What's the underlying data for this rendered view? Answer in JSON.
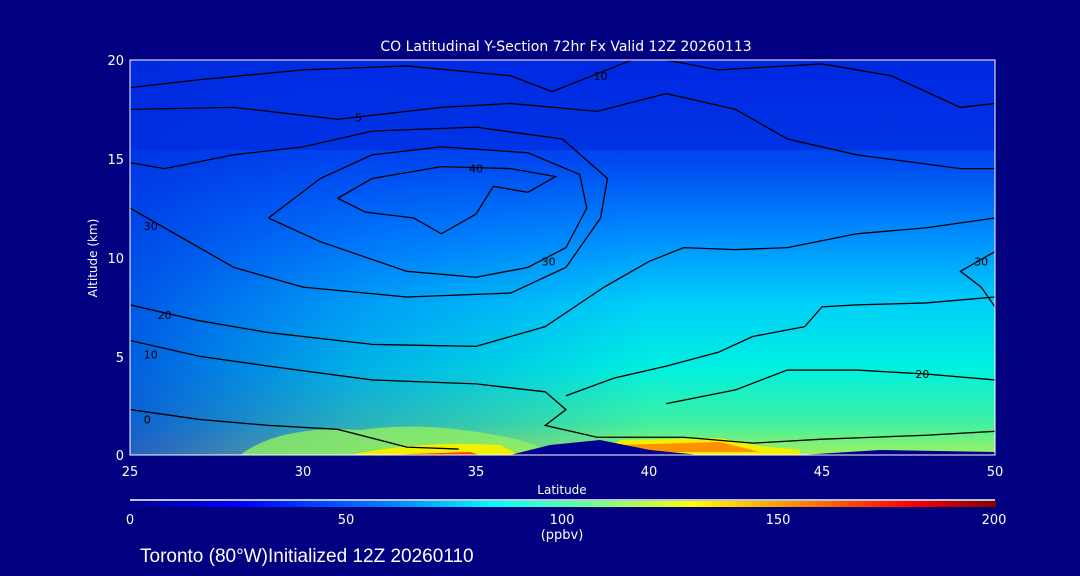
{
  "chart_data": {
    "type": "heatmap",
    "title": "CO Latitudinal Y-Section 72hr  Fx Valid 12Z 20260113",
    "xlabel": "Latitude",
    "ylabel": "Altitude (km)",
    "xlim": [
      25,
      50
    ],
    "ylim": [
      0,
      20
    ],
    "xticks": [
      "25",
      "30",
      "35",
      "40",
      "45",
      "50"
    ],
    "yticks": [
      "0",
      "5",
      "10",
      "15",
      "20"
    ],
    "colorbar": {
      "ticks": [
        "0",
        "50",
        "100",
        "150",
        "200"
      ],
      "range": [
        0,
        200
      ],
      "units": "(ppbv)",
      "colors": [
        "#000090",
        "#0000ff",
        "#0080ff",
        "#00ffff",
        "#80ff80",
        "#ffff00",
        "#ff8000",
        "#ff0000",
        "#800000"
      ]
    },
    "contours": [
      {
        "label": "40",
        "label_at": [
          35,
          14.5
        ],
        "points": [
          [
            31,
            13
          ],
          [
            32,
            14
          ],
          [
            34,
            14.6
          ],
          [
            36,
            14.5
          ],
          [
            37.3,
            14.1
          ],
          [
            36.5,
            13.3
          ],
          [
            35.5,
            13.6
          ],
          [
            35,
            12.2
          ],
          [
            34,
            11.2
          ],
          [
            33.2,
            12
          ],
          [
            31.8,
            12.3
          ],
          [
            31,
            13
          ]
        ]
      },
      {
        "label": "30",
        "label_at": [
          37.1,
          9.8
        ],
        "points": [
          [
            29,
            12
          ],
          [
            30.5,
            14
          ],
          [
            32,
            15.2
          ],
          [
            34,
            15.6
          ],
          [
            36.5,
            15.3
          ],
          [
            38,
            14.2
          ],
          [
            38.2,
            12.5
          ],
          [
            37.6,
            10.5
          ],
          [
            36.5,
            9.5
          ],
          [
            35,
            9
          ],
          [
            33,
            9.3
          ],
          [
            30.5,
            10.8
          ],
          [
            29,
            12
          ]
        ]
      },
      {
        "label": "30",
        "label_at": [
          25.6,
          11.6
        ],
        "points": [
          [
            25,
            12.5
          ],
          [
            26.5,
            11
          ],
          [
            28,
            9.5
          ],
          [
            30,
            8.5
          ],
          [
            33,
            8
          ],
          [
            36,
            8.2
          ],
          [
            37.6,
            9.5
          ],
          [
            38.6,
            12
          ],
          [
            38.8,
            14
          ],
          [
            37.5,
            16
          ],
          [
            35,
            16.6
          ],
          [
            32,
            16.4
          ],
          [
            30,
            15.6
          ],
          [
            28,
            15.2
          ],
          [
            26,
            14.5
          ],
          [
            25,
            14.8
          ]
        ]
      },
      {
        "label": "20",
        "label_at": [
          26,
          7.1
        ],
        "points": [
          [
            25,
            7.6
          ],
          [
            27,
            6.8
          ],
          [
            29,
            6.2
          ],
          [
            32,
            5.6
          ],
          [
            35,
            5.5
          ],
          [
            37,
            6.5
          ],
          [
            38.7,
            8.5
          ],
          [
            40,
            9.8
          ],
          [
            41,
            10.5
          ],
          [
            42.5,
            10.4
          ],
          [
            44,
            10.5
          ],
          [
            46,
            11.2
          ],
          [
            48,
            11.5
          ],
          [
            50,
            12
          ]
        ]
      },
      {
        "label": "10",
        "label_at": [
          25.6,
          5.1
        ],
        "points": [
          [
            25,
            5.8
          ],
          [
            27,
            5
          ],
          [
            29,
            4.5
          ],
          [
            32,
            3.8
          ],
          [
            35,
            3.6
          ],
          [
            37,
            3.2
          ],
          [
            37.6,
            2.3
          ],
          [
            37,
            1.5
          ],
          [
            38.5,
            0.9
          ],
          [
            41,
            0.9
          ],
          [
            43,
            0.6
          ],
          [
            45,
            0.8
          ],
          [
            48,
            1
          ],
          [
            50,
            1.2
          ]
        ]
      },
      {
        "label": "20",
        "label_at": [
          47.9,
          4.1
        ],
        "points": [
          [
            37.6,
            3
          ],
          [
            39,
            3.9
          ],
          [
            40.5,
            4.5
          ],
          [
            42,
            5.2
          ],
          [
            43,
            6
          ],
          [
            44.5,
            6.5
          ],
          [
            45,
            7.5
          ],
          [
            46,
            7.6
          ],
          [
            48,
            7.7
          ],
          [
            50,
            8
          ]
        ]
      },
      {
        "label": "20",
        "label_at": [
          47.9,
          4.1
        ],
        "points": [
          [
            40.5,
            2.6
          ],
          [
            42.5,
            3.3
          ],
          [
            44,
            4.3
          ],
          [
            46,
            4.3
          ],
          [
            48,
            4.1
          ],
          [
            50,
            3.8
          ]
        ]
      },
      {
        "label": "0",
        "label_at": [
          25.5,
          1.8
        ],
        "points": [
          [
            25,
            2.3
          ],
          [
            27,
            1.8
          ],
          [
            29,
            1.5
          ],
          [
            31,
            1.3
          ],
          [
            33,
            0.4
          ],
          [
            34.5,
            0.3
          ]
        ]
      },
      {
        "label": "30",
        "label_at": [
          49.6,
          9.8
        ],
        "points": [
          [
            50,
            10.3
          ],
          [
            49,
            9.3
          ],
          [
            49.6,
            8.5
          ],
          [
            50,
            7.5
          ]
        ]
      },
      {
        "label": "10",
        "label_at": [
          38.6,
          19.2
        ],
        "points": [
          [
            25,
            18.6
          ],
          [
            27,
            19
          ],
          [
            30,
            19.5
          ],
          [
            33,
            19.7
          ],
          [
            36,
            19.2
          ],
          [
            37.2,
            18.4
          ],
          [
            38.5,
            19.3
          ],
          [
            39.5,
            20
          ]
        ]
      },
      {
        "label": "5",
        "label_at": [
          31.6,
          17.1
        ],
        "points": [
          [
            25,
            17.5
          ],
          [
            28,
            17.6
          ],
          [
            31,
            17
          ],
          [
            34,
            17.6
          ],
          [
            36,
            17.8
          ],
          [
            38.5,
            17.4
          ],
          [
            40.5,
            18.3
          ],
          [
            42.5,
            17.5
          ],
          [
            44,
            16
          ],
          [
            46,
            15.2
          ],
          [
            49,
            14.5
          ],
          [
            50,
            14.5
          ]
        ]
      },
      {
        "label": "",
        "label_at": null,
        "points": [
          [
            40.5,
            20
          ],
          [
            42,
            19.5
          ],
          [
            45,
            19.8
          ],
          [
            47,
            19.2
          ],
          [
            49,
            17.6
          ],
          [
            50,
            17.8
          ]
        ]
      }
    ]
  },
  "footer": "Toronto (80°W)Initialized 12Z 20260110"
}
